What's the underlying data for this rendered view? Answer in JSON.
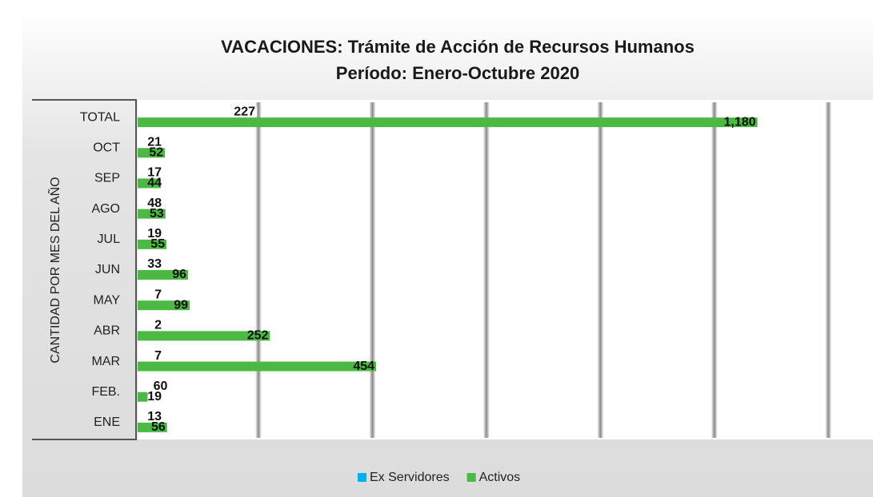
{
  "chart_data": {
    "type": "barh",
    "title": "VACACIONES: Trámite de Acción de Recursos Humanos",
    "subtitle": "Período: Enero-Octubre 2020",
    "y_label": "CANTIDAD POR MES DEL AÑO",
    "categories": [
      "TOTAL",
      "OCT",
      "SEP",
      "AGO",
      "JUL",
      "JUN",
      "MAY",
      "ABR",
      "MAR",
      "FEB.",
      "ENE"
    ],
    "series": [
      {
        "name": "Ex Servidores",
        "color": "#ffffff",
        "legend_color": "#00b0f0",
        "values": [
          227,
          21,
          17,
          48,
          19,
          33,
          7,
          2,
          7,
          60,
          13
        ]
      },
      {
        "name": "Activos",
        "color": "#4cb944",
        "legend_color": "#4cb944",
        "values": [
          1180,
          52,
          44,
          53,
          55,
          96,
          99,
          252,
          454,
          19,
          56
        ],
        "value_labels": [
          "1,180",
          "52",
          "44",
          "53",
          "55",
          "96",
          "99",
          "252",
          "454",
          "19",
          "56"
        ]
      }
    ],
    "xlim": [
      0,
      1400
    ],
    "xticks": [
      230,
      447,
      664,
      881,
      1098,
      1315
    ],
    "xtick_labels": false,
    "grid": true,
    "legend": "bottom"
  }
}
